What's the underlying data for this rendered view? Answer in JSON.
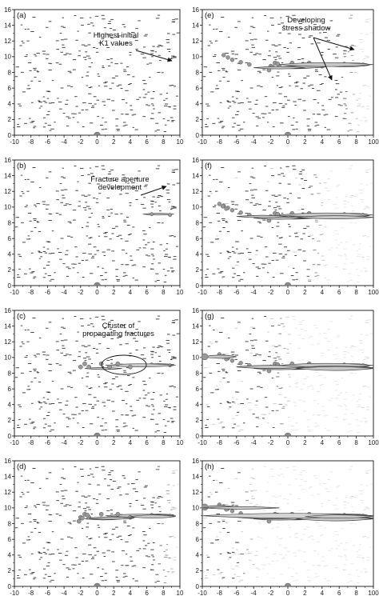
{
  "figure": {
    "x_ticks": [
      "-10",
      "-8",
      "-6",
      "-4",
      "-2",
      "0",
      "2",
      "4",
      "6",
      "8",
      "10"
    ],
    "y_ticks": [
      "0",
      "2",
      "4",
      "6",
      "8",
      "10",
      "12",
      "14",
      "16"
    ],
    "right_col_last_x_tick": "100"
  },
  "chart_data": [
    {
      "type": "scatter",
      "panel": "(a)",
      "xlim": [
        -10,
        10
      ],
      "ylim": [
        0,
        16
      ],
      "fracture_density": 1.0,
      "propagation_depth": 0,
      "annotations": [
        {
          "lines": [
            "Highest initial",
            "K1 values"
          ]
        }
      ]
    },
    {
      "type": "scatter",
      "panel": "(b)",
      "xlim": [
        -10,
        10
      ],
      "ylim": [
        0,
        16
      ],
      "fracture_density": 1.0,
      "propagation_depth": 1,
      "annotations": [
        {
          "lines": [
            "Fracture aperture",
            "development"
          ]
        }
      ]
    },
    {
      "type": "scatter",
      "panel": "(c)",
      "xlim": [
        -10,
        10
      ],
      "ylim": [
        0,
        16
      ],
      "fracture_density": 1.0,
      "propagation_depth": 2,
      "annotations": [
        {
          "lines": [
            "Cluster of",
            "propagating fractures"
          ]
        }
      ]
    },
    {
      "type": "scatter",
      "panel": "(d)",
      "xlim": [
        -10,
        10
      ],
      "ylim": [
        0,
        16
      ],
      "fracture_density": 0.85,
      "propagation_depth": 3,
      "annotations": []
    },
    {
      "type": "scatter",
      "panel": "(e)",
      "xlim": [
        -10,
        10
      ],
      "ylim": [
        0,
        16
      ],
      "fracture_density": 0.8,
      "propagation_depth": 4,
      "annotations": [
        {
          "lines": [
            "Developing",
            "stress shadow"
          ]
        }
      ]
    },
    {
      "type": "scatter",
      "panel": "(f)",
      "xlim": [
        -10,
        10
      ],
      "ylim": [
        0,
        16
      ],
      "fracture_density": 0.6,
      "propagation_depth": 5,
      "annotations": []
    },
    {
      "type": "scatter",
      "panel": "(g)",
      "xlim": [
        -10,
        10
      ],
      "ylim": [
        0,
        16
      ],
      "fracture_density": 0.4,
      "propagation_depth": 6,
      "annotations": []
    },
    {
      "type": "scatter",
      "panel": "(h)",
      "xlim": [
        -10,
        10
      ],
      "ylim": [
        0,
        16
      ],
      "fracture_density": 0.2,
      "propagation_depth": 7,
      "annotations": []
    }
  ]
}
